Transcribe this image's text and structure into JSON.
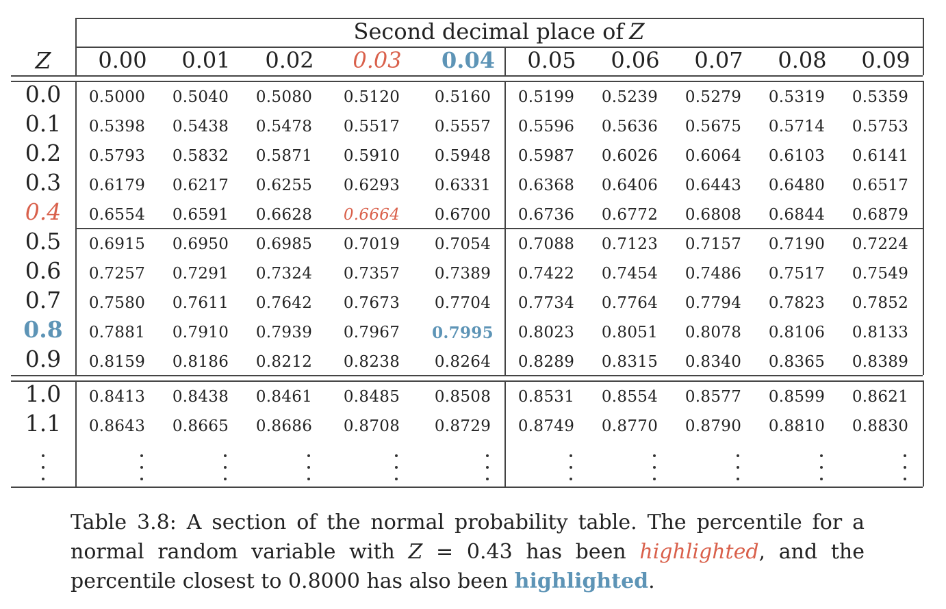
{
  "table": {
    "header": {
      "group_title": "Second decimal place of",
      "group_title_var": "Z",
      "z_label": "Z",
      "columns": [
        "0.00",
        "0.01",
        "0.02",
        "0.03",
        "0.04",
        "0.05",
        "0.06",
        "0.07",
        "0.08",
        "0.09"
      ]
    },
    "rows": [
      {
        "z": "0.0",
        "values": [
          "0.5000",
          "0.5040",
          "0.5080",
          "0.5120",
          "0.5160",
          "0.5199",
          "0.5239",
          "0.5279",
          "0.5319",
          "0.5359"
        ]
      },
      {
        "z": "0.1",
        "values": [
          "0.5398",
          "0.5438",
          "0.5478",
          "0.5517",
          "0.5557",
          "0.5596",
          "0.5636",
          "0.5675",
          "0.5714",
          "0.5753"
        ]
      },
      {
        "z": "0.2",
        "values": [
          "0.5793",
          "0.5832",
          "0.5871",
          "0.5910",
          "0.5948",
          "0.5987",
          "0.6026",
          "0.6064",
          "0.6103",
          "0.6141"
        ]
      },
      {
        "z": "0.3",
        "values": [
          "0.6179",
          "0.6217",
          "0.6255",
          "0.6293",
          "0.6331",
          "0.6368",
          "0.6406",
          "0.6443",
          "0.6480",
          "0.6517"
        ]
      },
      {
        "z": "0.4",
        "values": [
          "0.6554",
          "0.6591",
          "0.6628",
          "0.6664",
          "0.6700",
          "0.6736",
          "0.6772",
          "0.6808",
          "0.6844",
          "0.6879"
        ]
      },
      {
        "z": "0.5",
        "values": [
          "0.6915",
          "0.6950",
          "0.6985",
          "0.7019",
          "0.7054",
          "0.7088",
          "0.7123",
          "0.7157",
          "0.7190",
          "0.7224"
        ]
      },
      {
        "z": "0.6",
        "values": [
          "0.7257",
          "0.7291",
          "0.7324",
          "0.7357",
          "0.7389",
          "0.7422",
          "0.7454",
          "0.7486",
          "0.7517",
          "0.7549"
        ]
      },
      {
        "z": "0.7",
        "values": [
          "0.7580",
          "0.7611",
          "0.7642",
          "0.7673",
          "0.7704",
          "0.7734",
          "0.7764",
          "0.7794",
          "0.7823",
          "0.7852"
        ]
      },
      {
        "z": "0.8",
        "values": [
          "0.7881",
          "0.7910",
          "0.7939",
          "0.7967",
          "0.7995",
          "0.8023",
          "0.8051",
          "0.8078",
          "0.8106",
          "0.8133"
        ]
      },
      {
        "z": "0.9",
        "values": [
          "0.8159",
          "0.8186",
          "0.8212",
          "0.8238",
          "0.8264",
          "0.8289",
          "0.8315",
          "0.8340",
          "0.8365",
          "0.8389"
        ]
      },
      {
        "z": "1.0",
        "values": [
          "0.8413",
          "0.8438",
          "0.8461",
          "0.8485",
          "0.8508",
          "0.8531",
          "0.8554",
          "0.8577",
          "0.8599",
          "0.8621"
        ]
      },
      {
        "z": "1.1",
        "values": [
          "0.8643",
          "0.8665",
          "0.8686",
          "0.8708",
          "0.8729",
          "0.8749",
          "0.8770",
          "0.8790",
          "0.8810",
          "0.8830"
        ]
      }
    ],
    "highlight_red": {
      "row": 4,
      "col": 3
    },
    "highlight_blue": {
      "row": 8,
      "col": 4
    }
  },
  "caption": {
    "part1": "Table 3.8: A section of the normal probability table. The percentile for a normal random variable with ",
    "var": "Z",
    "part2": " = 0.43 has been ",
    "red_word": "highlighted",
    "part3": ", and the percentile closest to 0.8000 has also been ",
    "blue_word": "highlighted",
    "part4": "."
  },
  "colors": {
    "red_highlight": "#d9604b",
    "blue_highlight": "#5d94b6",
    "rule": "#444444"
  }
}
